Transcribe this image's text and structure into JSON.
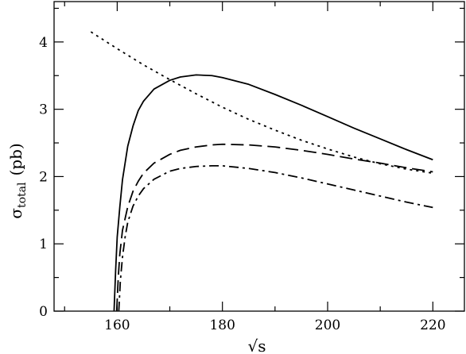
{
  "chart_data": {
    "type": "line",
    "xlabel": "√s",
    "ylabel": "σ",
    "ylabel_subscript": "total",
    "ylabel_unit": "(pb)",
    "xlim": [
      148,
      226
    ],
    "ylim": [
      0,
      4.6
    ],
    "x_ticks": [
      160,
      180,
      200,
      220
    ],
    "x_tick_labels": [
      "160",
      "180",
      "200",
      "220"
    ],
    "y_ticks": [
      0,
      1,
      2,
      3,
      4
    ],
    "y_tick_labels": [
      "0",
      "1",
      "2",
      "3",
      "4"
    ],
    "grid": false,
    "legend": "none",
    "series": [
      {
        "style": "solid",
        "x": [
          159.4,
          159.7,
          160,
          160.5,
          161,
          162,
          163,
          164,
          165,
          167,
          170,
          172,
          175,
          178,
          180,
          185,
          190,
          195,
          200,
          205,
          210,
          215,
          220
        ],
        "y": [
          0,
          0.6,
          1.1,
          1.55,
          1.95,
          2.45,
          2.75,
          2.98,
          3.12,
          3.3,
          3.43,
          3.48,
          3.51,
          3.5,
          3.47,
          3.37,
          3.22,
          3.06,
          2.89,
          2.72,
          2.56,
          2.4,
          2.25
        ]
      },
      {
        "style": "dashed",
        "x": [
          159.9,
          160.2,
          160.5,
          161,
          162,
          163,
          164,
          165,
          167,
          170,
          172,
          175,
          178,
          180,
          185,
          190,
          195,
          200,
          205,
          210,
          215,
          220
        ],
        "y": [
          0,
          0.5,
          0.85,
          1.2,
          1.55,
          1.78,
          1.93,
          2.05,
          2.2,
          2.33,
          2.39,
          2.44,
          2.47,
          2.48,
          2.47,
          2.44,
          2.39,
          2.33,
          2.26,
          2.2,
          2.13,
          2.07
        ]
      },
      {
        "style": "dashdot",
        "x": [
          160.3,
          160.6,
          161,
          161.5,
          162,
          163,
          164,
          165,
          167,
          170,
          172,
          175,
          178,
          180,
          185,
          190,
          195,
          200,
          205,
          210,
          215,
          220
        ],
        "y": [
          0,
          0.45,
          0.8,
          1.1,
          1.32,
          1.56,
          1.71,
          1.82,
          1.96,
          2.08,
          2.12,
          2.15,
          2.16,
          2.16,
          2.12,
          2.06,
          1.98,
          1.89,
          1.8,
          1.71,
          1.62,
          1.54
        ]
      },
      {
        "style": "dotted",
        "x": [
          155,
          160,
          165,
          170,
          175,
          180,
          185,
          190,
          195,
          200,
          205,
          210,
          215,
          220
        ],
        "y": [
          4.15,
          3.9,
          3.66,
          3.44,
          3.23,
          3.03,
          2.85,
          2.69,
          2.54,
          2.41,
          2.29,
          2.19,
          2.11,
          2.05
        ]
      }
    ]
  }
}
